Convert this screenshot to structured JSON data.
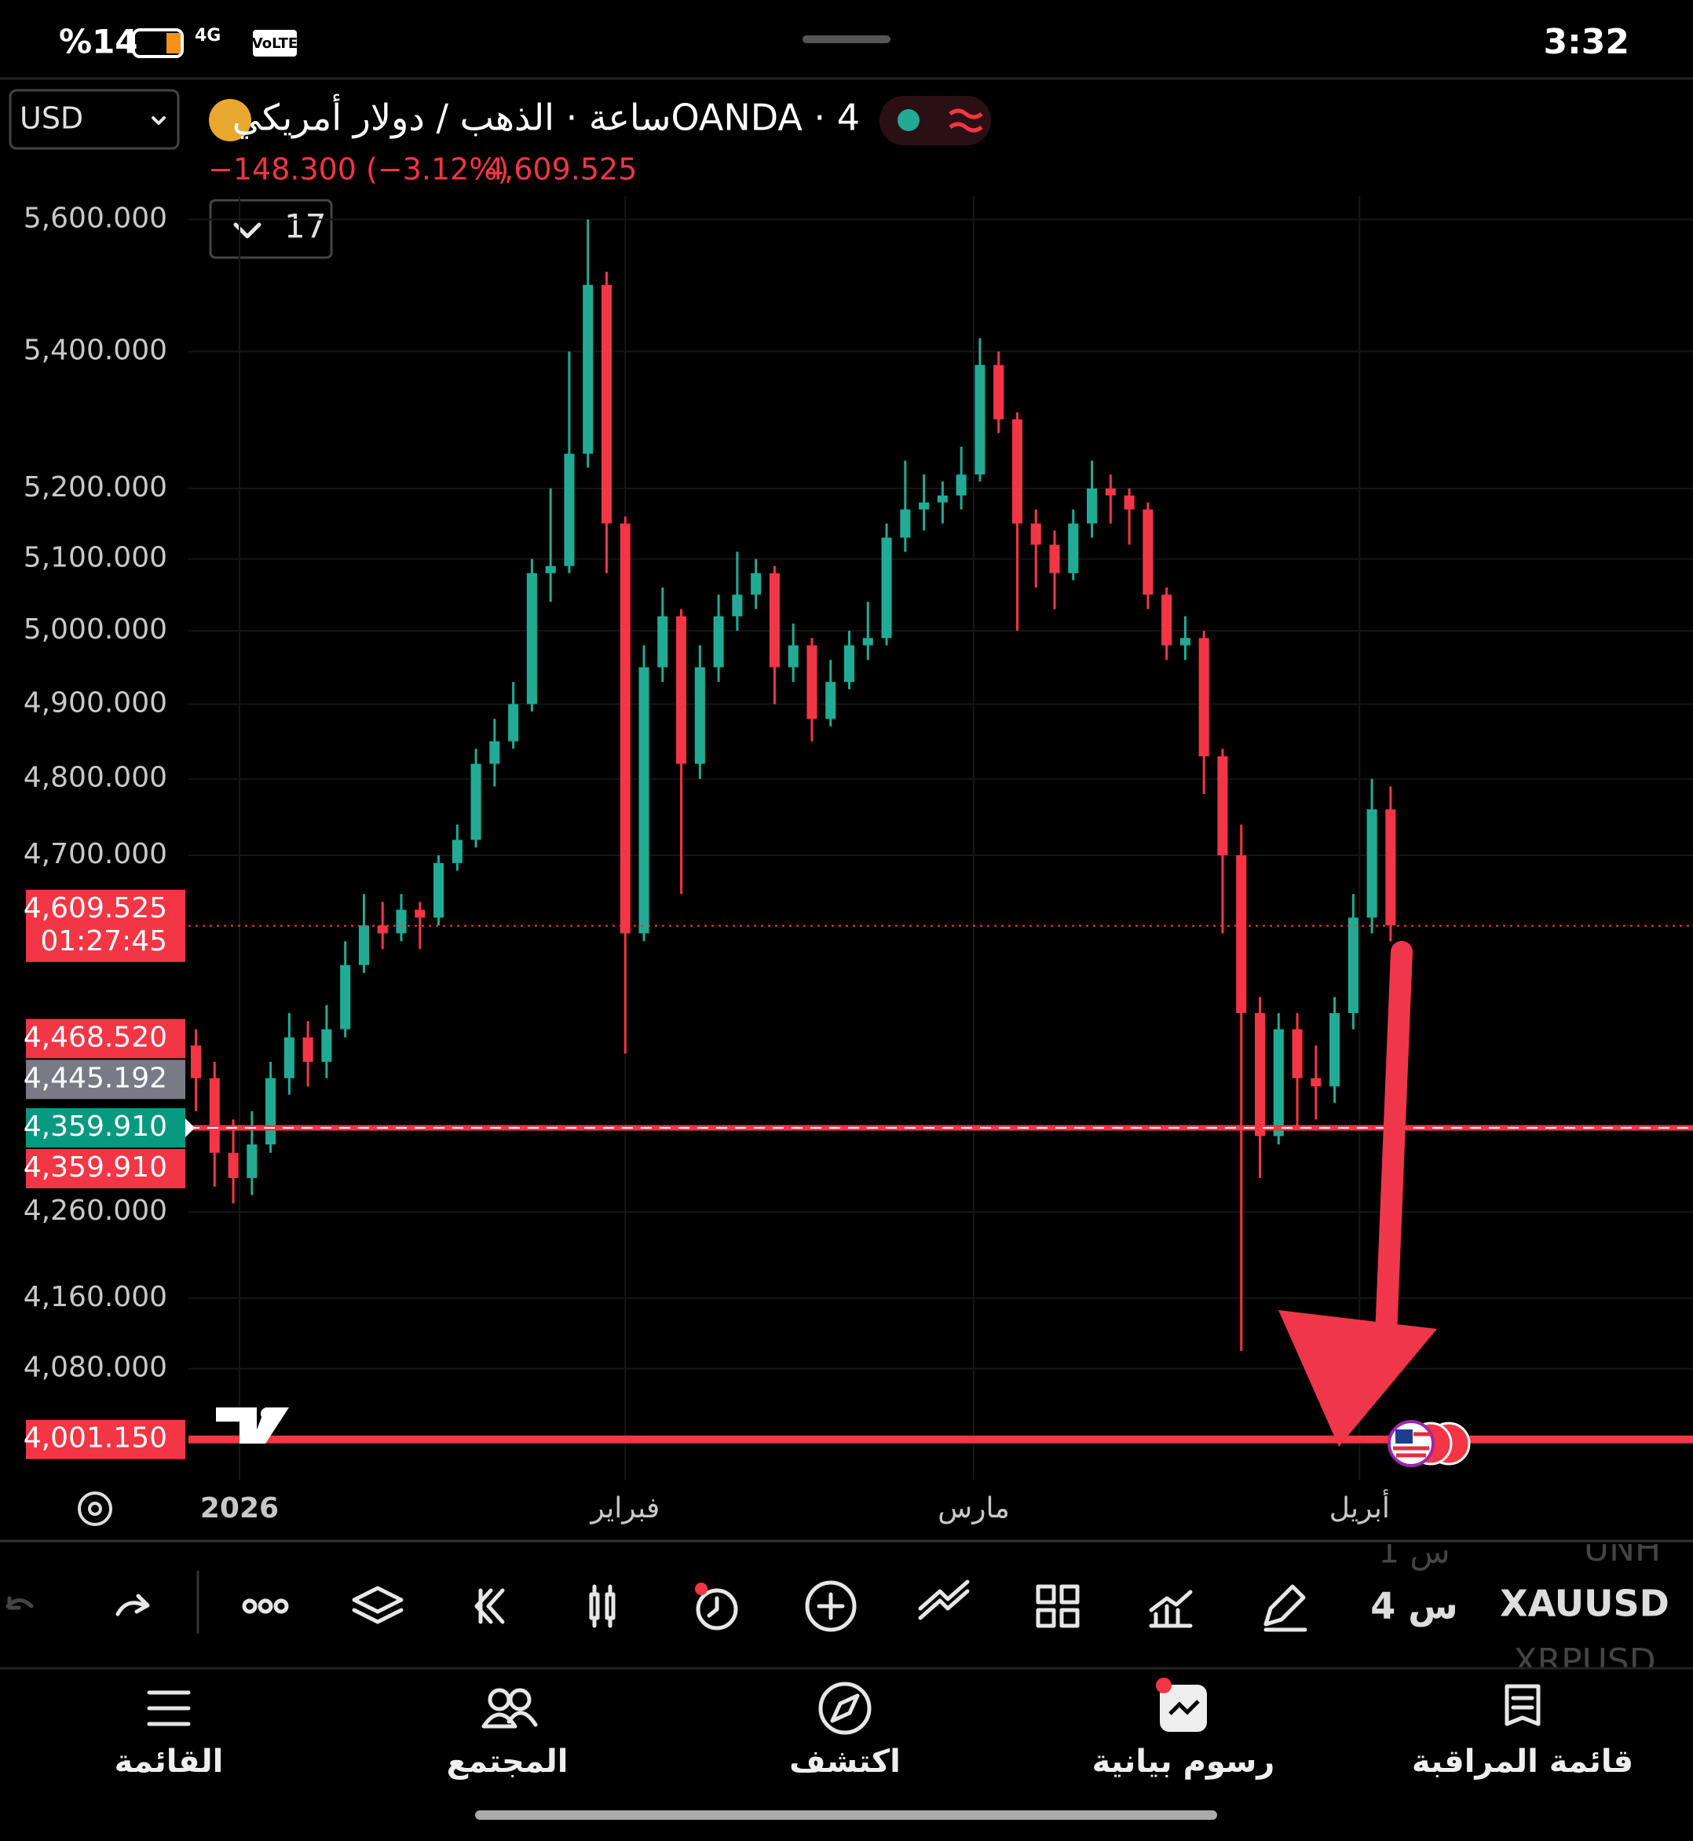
{
  "status_bar": {
    "battery": "%14",
    "network": "4G",
    "volte": "VoLTE",
    "time": "3:32"
  },
  "header": {
    "currency": "USD",
    "interval_count": "17"
  },
  "chart_data": {
    "type": "candlestick",
    "title": "OANDA · 4ساعة · الذهب / دولار أمريكي",
    "change": "−148.300 (−3.12%)",
    "last_price": "4,609.525",
    "up_color": "#22ab94",
    "down_color": "#f23645",
    "log_scale": true,
    "grid": true,
    "xlim": [
      -4.1,
      116.8
    ],
    "xticks": [
      {
        "value": 0,
        "label": "2026"
      },
      {
        "value": 31,
        "label": "فبراير"
      },
      {
        "value": 59,
        "label": "مارس"
      },
      {
        "value": 90,
        "label": "أبريل"
      }
    ],
    "ylim": [
      3957,
      5631
    ],
    "yticks": [
      {
        "value": 5600,
        "label": "5,600.000"
      },
      {
        "value": 5400,
        "label": "5,400.000"
      },
      {
        "value": 5200,
        "label": "5,200.000"
      },
      {
        "value": 5100,
        "label": "5,100.000"
      },
      {
        "value": 5000,
        "label": "5,000.000"
      },
      {
        "value": 4900,
        "label": "4,900.000"
      },
      {
        "value": 4800,
        "label": "4,800.000"
      },
      {
        "value": 4700,
        "label": "4,700.000"
      },
      {
        "value": 4260,
        "label": "4,260.000"
      },
      {
        "value": 4160,
        "label": "4,160.000"
      },
      {
        "value": 4080,
        "label": "4,080.000"
      }
    ],
    "x": [
      -3.5,
      -2,
      -0.5,
      1,
      2.5,
      4,
      5.5,
      7,
      8.5,
      10,
      11.5,
      13,
      14.5,
      16,
      17.5,
      19,
      20.5,
      22,
      23.5,
      25,
      26.5,
      28,
      29.5,
      31,
      32.5,
      34,
      35.5,
      37,
      38.5,
      40,
      41.5,
      43,
      44.5,
      46,
      47.5,
      49,
      50.5,
      52,
      53.5,
      55,
      56.5,
      58,
      59.5,
      61,
      62.5,
      64,
      65.5,
      67,
      68.5,
      70,
      71.5,
      73,
      74.5,
      76,
      77.5,
      79,
      80.5,
      82,
      83.5,
      85,
      86.5,
      88,
      89.5,
      91,
      92.5
    ],
    "open": [
      4460,
      4420,
      4330,
      4300,
      4340,
      4420,
      4470,
      4440,
      4480,
      4560,
      4610,
      4600,
      4630,
      4620,
      4690,
      4720,
      4820,
      4850,
      4900,
      5080,
      5090,
      5250,
      5500,
      5150,
      4600,
      4950,
      5020,
      4820,
      4950,
      5020,
      5050,
      5080,
      4950,
      4980,
      4880,
      4930,
      4980,
      4990,
      5130,
      5170,
      5180,
      5190,
      5220,
      5380,
      5300,
      5150,
      5120,
      5080,
      5150,
      5200,
      5190,
      5170,
      5050,
      4980,
      4990,
      4830,
      4700,
      4500,
      4350,
      4480,
      4420,
      4410,
      4500,
      4620,
      4760
    ],
    "high": [
      4480,
      4440,
      4370,
      4380,
      4440,
      4500,
      4490,
      4510,
      4590,
      4650,
      4640,
      4650,
      4640,
      4700,
      4740,
      4840,
      4880,
      4930,
      5100,
      5200,
      5400,
      5600,
      5520,
      5160,
      4980,
      5060,
      5030,
      4980,
      5050,
      5110,
      5100,
      5090,
      5010,
      4990,
      4960,
      5000,
      5040,
      5150,
      5240,
      5220,
      5210,
      5260,
      5420,
      5400,
      5310,
      5170,
      5140,
      5170,
      5240,
      5220,
      5200,
      5180,
      5060,
      5020,
      5000,
      4840,
      4740,
      4520,
      4500,
      4500,
      4460,
      4520,
      4650,
      4800,
      4790
    ],
    "low": [
      4380,
      4290,
      4270,
      4280,
      4330,
      4400,
      4410,
      4420,
      4470,
      4550,
      4580,
      4590,
      4580,
      4610,
      4680,
      4710,
      4790,
      4840,
      4890,
      5040,
      5080,
      5230,
      5080,
      4450,
      4590,
      4930,
      4650,
      4800,
      4930,
      5000,
      5030,
      4900,
      4930,
      4850,
      4870,
      4920,
      4960,
      4980,
      5110,
      5140,
      5150,
      5170,
      5210,
      5280,
      5000,
      5060,
      5030,
      5070,
      5130,
      5150,
      5120,
      5030,
      4960,
      4960,
      4780,
      4600,
      4100,
      4300,
      4340,
      4360,
      4370,
      4390,
      4480,
      4600,
      4590
    ],
    "close": [
      4420,
      4330,
      4300,
      4340,
      4420,
      4470,
      4440,
      4480,
      4560,
      4610,
      4600,
      4630,
      4620,
      4690,
      4720,
      4820,
      4850,
      4900,
      5080,
      5090,
      5250,
      5500,
      5150,
      4600,
      4950,
      5020,
      4820,
      4950,
      5020,
      5050,
      5080,
      4950,
      4980,
      4880,
      4930,
      4980,
      4990,
      5130,
      5170,
      5180,
      5190,
      5220,
      5380,
      5300,
      5150,
      5120,
      5080,
      5150,
      5200,
      5190,
      5170,
      5050,
      4980,
      4990,
      4830,
      4700,
      4500,
      4350,
      4480,
      4420,
      4410,
      4500,
      4620,
      4760,
      4610
    ],
    "price_lines": [
      {
        "value": 4609.525,
        "label": "4,609.525",
        "countdown": "01:27:45",
        "color": "#f23645",
        "style": "dotted"
      },
      {
        "value": 4468.52,
        "label": "4,468.520",
        "color": "#f23645"
      },
      {
        "value": 4445.192,
        "label": "4,445.192",
        "color": "#787b86"
      },
      {
        "value": 4359.91,
        "label": "4,359.910",
        "color": "#089981"
      },
      {
        "value": 4359.91,
        "label": "4,359.910",
        "color": "#f23645",
        "style": "solid"
      },
      {
        "value": 4001.15,
        "label": "4,001.150",
        "color": "#f23645",
        "style": "thick"
      }
    ]
  },
  "toolbar": {
    "symbols": [
      {
        "name": "UNH",
        "interval": "1 س"
      },
      {
        "name": "XAUUSD",
        "interval": "4 س"
      },
      {
        "name": "XRPUSD"
      }
    ]
  },
  "bottom_nav": [
    "القائمة",
    "المجتمع",
    "اكتشف",
    "رسوم بيانية",
    "قائمة المراقبة"
  ]
}
